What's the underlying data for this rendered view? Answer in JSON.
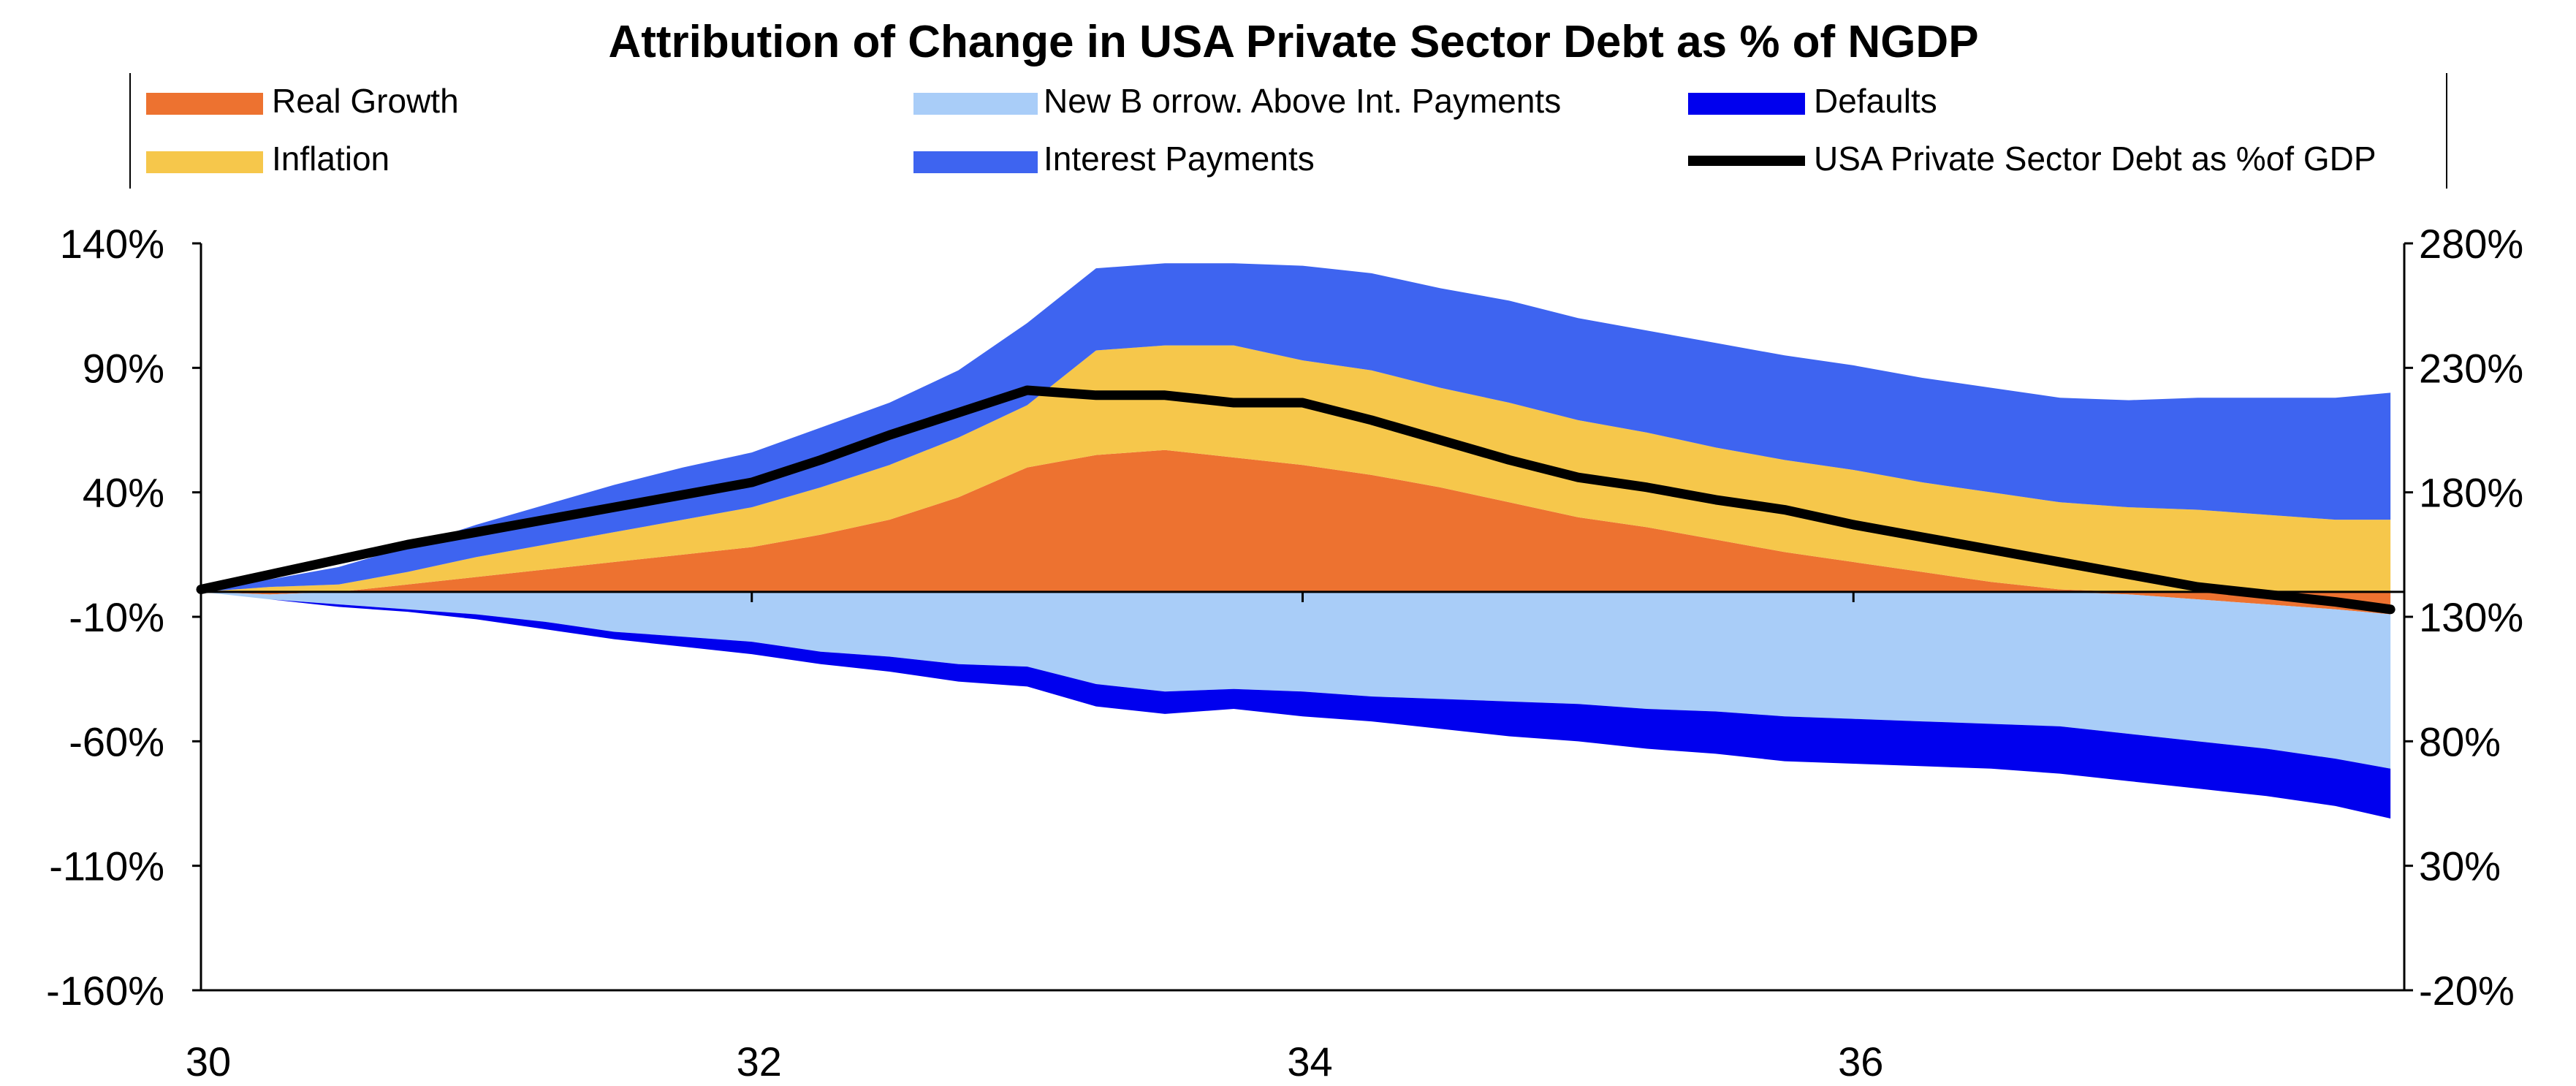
{
  "chart_data": {
    "type": "area",
    "title": "Attribution of Change in USA Private Sector Debt as % of NGDP",
    "xlabel": "",
    "ylabel": "",
    "x_range": [
      30,
      38
    ],
    "x_ticks": [
      "30",
      "32",
      "34",
      "36"
    ],
    "x_tick_values": [
      30,
      32,
      34,
      36
    ],
    "y_left_range": [
      -160,
      140
    ],
    "y_left_ticks": [
      "140%",
      "90%",
      "40%",
      "-10%",
      "-60%",
      "-110%",
      "-160%"
    ],
    "y_left_tick_values": [
      140,
      90,
      40,
      -10,
      -60,
      -110,
      -160
    ],
    "y_right_range": [
      -20,
      280
    ],
    "y_right_ticks": [
      "280%",
      "230%",
      "180%",
      "130%",
      "80%",
      "30%",
      "-20%"
    ],
    "y_right_tick_values": [
      280,
      230,
      180,
      130,
      80,
      30,
      -20
    ],
    "grid": false,
    "legend_position": "top",
    "x": [
      30.0,
      30.25,
      30.5,
      30.75,
      31.0,
      31.25,
      31.5,
      31.75,
      32.0,
      32.25,
      32.5,
      32.75,
      33.0,
      33.25,
      33.5,
      33.75,
      34.0,
      34.25,
      34.5,
      34.75,
      35.0,
      35.25,
      35.5,
      35.75,
      36.0,
      36.25,
      36.5,
      36.75,
      37.0,
      37.25,
      37.5,
      37.75,
      37.95
    ],
    "series": [
      {
        "name": "Real Growth",
        "color": "#ED7230",
        "axis": "left",
        "values": [
          0,
          -1,
          0,
          3,
          6,
          9,
          12,
          15,
          18,
          23,
          29,
          38,
          50,
          55,
          57,
          54,
          51,
          47,
          42,
          36,
          30,
          26,
          21,
          16,
          12,
          8,
          4,
          1,
          -1,
          -3,
          -5,
          -7,
          -9
        ]
      },
      {
        "name": "Inflation",
        "color": "#F6C74B",
        "axis": "left",
        "values": [
          0,
          2,
          3,
          5,
          8,
          10,
          12,
          14,
          16,
          19,
          22,
          24,
          25,
          42,
          42,
          45,
          42,
          42,
          40,
          40,
          39,
          38,
          37,
          37,
          37,
          36,
          36,
          35,
          34,
          33,
          31,
          29,
          29
        ]
      },
      {
        "name": "Interest Payments",
        "color": "#3E64F0",
        "axis": "left",
        "values": [
          0,
          3,
          7,
          10,
          13,
          16,
          19,
          21,
          22,
          24,
          25,
          27,
          33,
          33,
          33,
          33,
          38,
          39,
          40,
          41,
          41,
          41,
          42,
          42,
          42,
          42,
          42,
          42,
          43,
          45,
          47,
          49,
          51
        ]
      },
      {
        "name": "New Borrow. Above Int. Payments",
        "color": "#A9CDF8",
        "axis": "left",
        "values": [
          0,
          -2,
          -5,
          -7,
          -9,
          -12,
          -16,
          -18,
          -20,
          -24,
          -26,
          -29,
          -30,
          -37,
          -40,
          -39,
          -40,
          -42,
          -43,
          -44,
          -45,
          -47,
          -48,
          -50,
          -51,
          -52,
          -53,
          -54,
          -56,
          -57,
          -58,
          -60,
          -62
        ]
      },
      {
        "name": "Defaults",
        "color": "#0000EE",
        "axis": "left",
        "values": [
          0,
          0,
          -1,
          -1,
          -2,
          -3,
          -3,
          -4,
          -5,
          -5,
          -6,
          -7,
          -8,
          -9,
          -9,
          -8,
          -10,
          -10,
          -12,
          -14,
          -15,
          -16,
          -17,
          -18,
          -18,
          -18,
          -18,
          -19,
          -19,
          -19,
          -19,
          -19,
          -20
        ]
      },
      {
        "name": "USA Private Sector Debt as %of GDP",
        "color": "#000000",
        "axis": "right",
        "values": [
          141,
          147,
          153,
          159,
          164,
          169,
          174,
          179,
          184,
          193,
          203,
          212,
          221,
          219,
          219,
          216,
          216,
          209,
          201,
          193,
          186,
          182,
          177,
          173,
          167,
          162,
          157,
          152,
          147,
          142,
          139,
          136,
          133
        ]
      }
    ],
    "legend": {
      "col1": [
        "Real Growth",
        "Inflation"
      ],
      "col2": [
        "New B orrow. Above Int. Payments",
        "Interest Payments"
      ],
      "col3": [
        "Defaults",
        "USA Private Sector Debt as %of GDP"
      ]
    }
  }
}
